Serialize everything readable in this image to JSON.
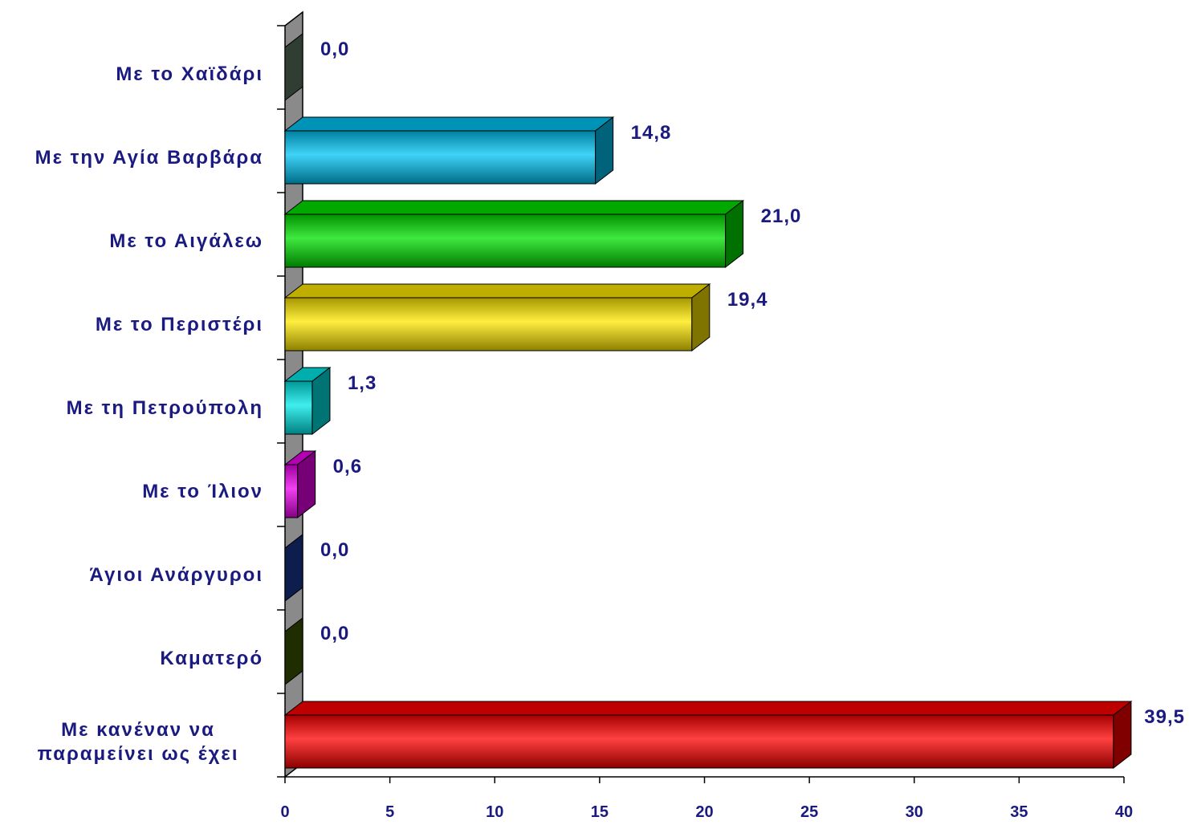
{
  "chart_data": {
    "type": "bar",
    "orientation": "horizontal",
    "style": "3d",
    "categories": [
      [
        "Με το Χαϊδάρι"
      ],
      [
        "Με την Αγία Βαρβάρα"
      ],
      [
        "Με το Αιγάλεω"
      ],
      [
        "Με το Περιστέρι"
      ],
      [
        "Με τη Πετρούπολη"
      ],
      [
        "Με το Ίλιον"
      ],
      [
        "Άγιοι Ανάργυροι"
      ],
      [
        "Καματερό"
      ],
      [
        "Με κανέναν να",
        "παραμείνει ως έχει"
      ]
    ],
    "values": [
      0.0,
      14.8,
      21.0,
      19.4,
      1.3,
      0.6,
      0.0,
      0.0,
      39.5
    ],
    "value_labels": [
      "0,0",
      "14,8",
      "21,0",
      "19,4",
      "1,3",
      "0,6",
      "0,0",
      "0,0",
      "39,5"
    ],
    "colors": [
      "#5f7a63",
      "#00c4f5",
      "#00e000",
      "#ffe800",
      "#00e8e8",
      "#ee00ee",
      "#1a3a9a",
      "#3f5a00",
      "#ff0000"
    ],
    "xlim": [
      0,
      40
    ],
    "xticks": [
      "0",
      "5",
      "10",
      "15",
      "20",
      "25",
      "30",
      "35",
      "40"
    ],
    "grid": false,
    "legend": "none",
    "title": "",
    "xlabel": "",
    "ylabel": ""
  }
}
